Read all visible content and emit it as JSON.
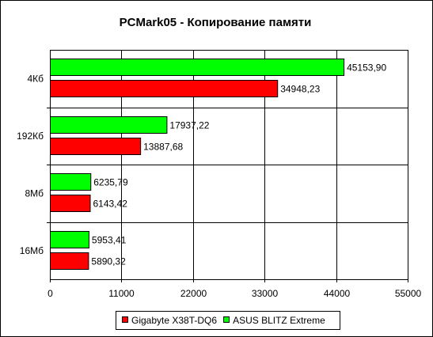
{
  "chart_data": {
    "type": "bar",
    "orientation": "horizontal",
    "title": "PCMark05 - Копирование памяти",
    "xlabel": "",
    "ylabel": "",
    "categories": [
      "4Кб",
      "192Кб",
      "8Мб",
      "16Мб"
    ],
    "series": [
      {
        "name": "ASUS BLITZ Extreme",
        "color": "#00ff00",
        "values": [
          45153.9,
          17937.22,
          6235.79,
          5953.41
        ],
        "labels": [
          "45153,90",
          "17937,22",
          "6235,79",
          "5953,41"
        ]
      },
      {
        "name": "Gigabyte X38T-DQ6",
        "color": "#ff0000",
        "values": [
          34948.23,
          13887.68,
          6143.42,
          5890.32
        ],
        "labels": [
          "34948,23",
          "13887,68",
          "6143,42",
          "5890,32"
        ]
      }
    ],
    "xlim": [
      0,
      55000
    ],
    "xticks": [
      0,
      11000,
      22000,
      33000,
      44000,
      55000
    ],
    "xtick_labels": [
      "0",
      "11000",
      "22000",
      "33000",
      "44000",
      "55000"
    ],
    "grid": true,
    "legend": {
      "placement": "bottom",
      "entries": [
        "Gigabyte X38T-DQ6",
        "ASUS BLITZ Extreme"
      ]
    }
  }
}
